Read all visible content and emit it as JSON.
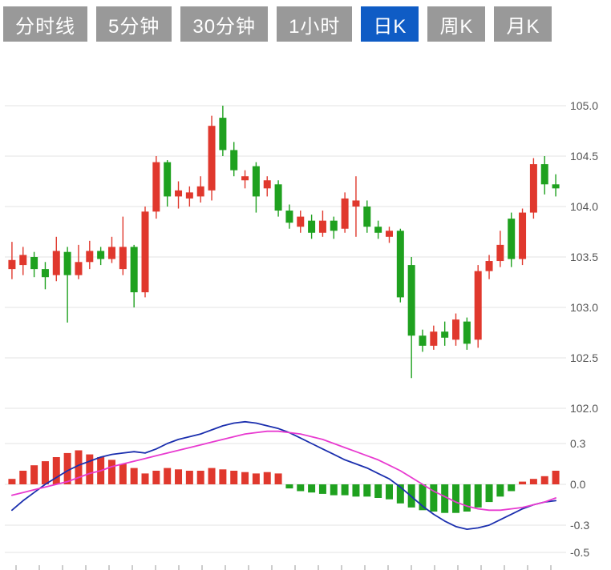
{
  "toolbar": {
    "tabs": [
      {
        "id": "minute-line",
        "label": "分时线",
        "active": false
      },
      {
        "id": "5min",
        "label": "5分钟",
        "active": false
      },
      {
        "id": "30min",
        "label": "30分钟",
        "active": false
      },
      {
        "id": "1hour",
        "label": "1小时",
        "active": false
      },
      {
        "id": "daily-k",
        "label": "日K",
        "active": true
      },
      {
        "id": "weekly-k",
        "label": "周K",
        "active": false
      },
      {
        "id": "monthly-k",
        "label": "月K",
        "active": false
      }
    ]
  },
  "colors": {
    "tab_bg": "#999999",
    "tab_active_bg": "#0f5cc5",
    "grid": "#e3e3e3",
    "axis_text": "#555555",
    "up": "#e0382d",
    "down": "#1fa11f",
    "dif_line": "#1b2fae",
    "dea_line": "#e83bd0",
    "tick": "#aaaaaa"
  },
  "chart_data": {
    "type": "candlestick",
    "title": "日K candlestick chart with MACD",
    "main": {
      "axis_labels": [
        "105.0",
        "104.5",
        "104.0",
        "103.5",
        "103.0",
        "102.5",
        "102.0"
      ],
      "ylim": [
        102.0,
        105.0
      ],
      "candles_ohlc": [
        [
          103.38,
          103.65,
          103.28,
          103.47
        ],
        [
          103.42,
          103.6,
          103.32,
          103.52
        ],
        [
          103.5,
          103.55,
          103.3,
          103.38
        ],
        [
          103.38,
          103.45,
          103.18,
          103.3
        ],
        [
          103.32,
          103.7,
          103.26,
          103.56
        ],
        [
          103.55,
          103.6,
          102.85,
          103.32
        ],
        [
          103.32,
          103.62,
          103.28,
          103.45
        ],
        [
          103.45,
          103.66,
          103.38,
          103.56
        ],
        [
          103.56,
          103.6,
          103.42,
          103.48
        ],
        [
          103.48,
          103.7,
          103.44,
          103.6
        ],
        [
          103.38,
          103.9,
          103.32,
          103.6
        ],
        [
          103.6,
          103.62,
          103.0,
          103.15
        ],
        [
          103.15,
          104.0,
          103.1,
          103.95
        ],
        [
          103.95,
          104.5,
          103.88,
          104.44
        ],
        [
          104.44,
          104.46,
          104.0,
          104.1
        ],
        [
          104.1,
          104.25,
          103.98,
          104.16
        ],
        [
          104.08,
          104.2,
          104.0,
          104.14
        ],
        [
          104.1,
          104.3,
          104.04,
          104.2
        ],
        [
          104.16,
          104.9,
          104.06,
          104.8
        ],
        [
          104.88,
          105.0,
          104.5,
          104.56
        ],
        [
          104.56,
          104.64,
          104.3,
          104.36
        ],
        [
          104.26,
          104.36,
          104.18,
          104.3
        ],
        [
          104.4,
          104.44,
          103.94,
          104.1
        ],
        [
          104.18,
          104.3,
          104.1,
          104.26
        ],
        [
          104.22,
          104.26,
          103.9,
          103.96
        ],
        [
          103.96,
          104.02,
          103.78,
          103.84
        ],
        [
          103.8,
          103.96,
          103.74,
          103.9
        ],
        [
          103.86,
          103.92,
          103.68,
          103.74
        ],
        [
          103.74,
          103.96,
          103.7,
          103.86
        ],
        [
          103.86,
          103.9,
          103.68,
          103.76
        ],
        [
          103.78,
          104.14,
          103.74,
          104.08
        ],
        [
          104.0,
          104.3,
          103.7,
          104.06
        ],
        [
          104.0,
          104.06,
          103.74,
          103.8
        ],
        [
          103.8,
          103.86,
          103.68,
          103.74
        ],
        [
          103.7,
          103.8,
          103.64,
          103.76
        ],
        [
          103.76,
          103.78,
          103.05,
          103.1
        ],
        [
          103.42,
          103.5,
          102.3,
          102.72
        ],
        [
          102.72,
          102.78,
          102.56,
          102.62
        ],
        [
          102.62,
          102.82,
          102.58,
          102.76
        ],
        [
          102.76,
          102.86,
          102.62,
          102.7
        ],
        [
          102.68,
          102.94,
          102.62,
          102.88
        ],
        [
          102.86,
          102.9,
          102.58,
          102.64
        ],
        [
          102.68,
          103.42,
          102.6,
          103.36
        ],
        [
          103.36,
          103.52,
          103.28,
          103.46
        ],
        [
          103.46,
          103.76,
          103.4,
          103.62
        ],
        [
          103.88,
          103.94,
          103.4,
          103.48
        ],
        [
          103.48,
          103.98,
          103.42,
          103.94
        ],
        [
          103.94,
          104.48,
          103.88,
          104.42
        ],
        [
          104.42,
          104.5,
          104.12,
          104.22
        ],
        [
          104.22,
          104.32,
          104.1,
          104.18
        ]
      ]
    },
    "macd": {
      "axis_labels": [
        "0.3",
        "0.0",
        "-0.3",
        "-0.5"
      ],
      "histogram": [
        0.04,
        0.1,
        0.14,
        0.17,
        0.2,
        0.23,
        0.25,
        0.22,
        0.2,
        0.18,
        0.15,
        0.12,
        0.08,
        0.1,
        0.12,
        0.11,
        0.1,
        0.1,
        0.12,
        0.11,
        0.1,
        0.09,
        0.08,
        0.09,
        0.08,
        -0.03,
        -0.05,
        -0.06,
        -0.07,
        -0.08,
        -0.08,
        -0.09,
        -0.09,
        -0.1,
        -0.11,
        -0.14,
        -0.17,
        -0.19,
        -0.2,
        -0.21,
        -0.21,
        -0.2,
        -0.17,
        -0.13,
        -0.09,
        -0.05,
        0.02,
        0.04,
        0.06,
        0.1
      ],
      "dif": [
        -0.19,
        -0.12,
        -0.06,
        0.0,
        0.05,
        0.1,
        0.14,
        0.17,
        0.2,
        0.22,
        0.23,
        0.24,
        0.23,
        0.26,
        0.3,
        0.33,
        0.35,
        0.37,
        0.4,
        0.43,
        0.45,
        0.46,
        0.45,
        0.43,
        0.41,
        0.38,
        0.34,
        0.3,
        0.26,
        0.22,
        0.18,
        0.15,
        0.12,
        0.08,
        0.04,
        -0.02,
        -0.09,
        -0.16,
        -0.22,
        -0.27,
        -0.31,
        -0.33,
        -0.32,
        -0.3,
        -0.26,
        -0.22,
        -0.18,
        -0.15,
        -0.13,
        -0.12
      ],
      "dea": [
        -0.08,
        -0.06,
        -0.04,
        -0.02,
        0.0,
        0.02,
        0.05,
        0.08,
        0.1,
        0.13,
        0.15,
        0.17,
        0.19,
        0.21,
        0.23,
        0.25,
        0.27,
        0.29,
        0.31,
        0.33,
        0.35,
        0.37,
        0.38,
        0.39,
        0.39,
        0.38,
        0.37,
        0.35,
        0.33,
        0.3,
        0.27,
        0.24,
        0.21,
        0.18,
        0.14,
        0.1,
        0.05,
        0.0,
        -0.05,
        -0.09,
        -0.13,
        -0.16,
        -0.18,
        -0.19,
        -0.19,
        -0.18,
        -0.17,
        -0.15,
        -0.13,
        -0.1
      ]
    }
  }
}
